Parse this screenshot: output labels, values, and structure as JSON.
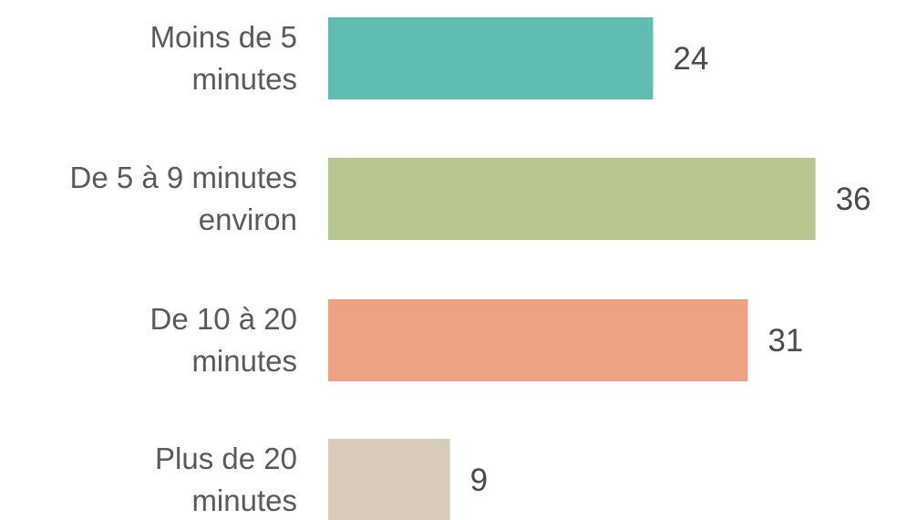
{
  "chart_data": {
    "type": "bar",
    "orientation": "horizontal",
    "categories": [
      [
        "Moins de 5",
        "minutes"
      ],
      [
        "De 5 à 9 minutes",
        "environ"
      ],
      [
        "De 10 à 20",
        "minutes"
      ],
      [
        "Plus de 20",
        "minutes"
      ]
    ],
    "values": [
      24,
      36,
      31,
      9
    ],
    "value_labels": [
      "24",
      "36",
      "31",
      "9"
    ],
    "colors": [
      "#5fbcb0",
      "#b7c58f",
      "#eca283",
      "#d8cbb9"
    ],
    "title": "",
    "xlabel": "",
    "ylabel": "",
    "grid": false,
    "legend": "none"
  }
}
